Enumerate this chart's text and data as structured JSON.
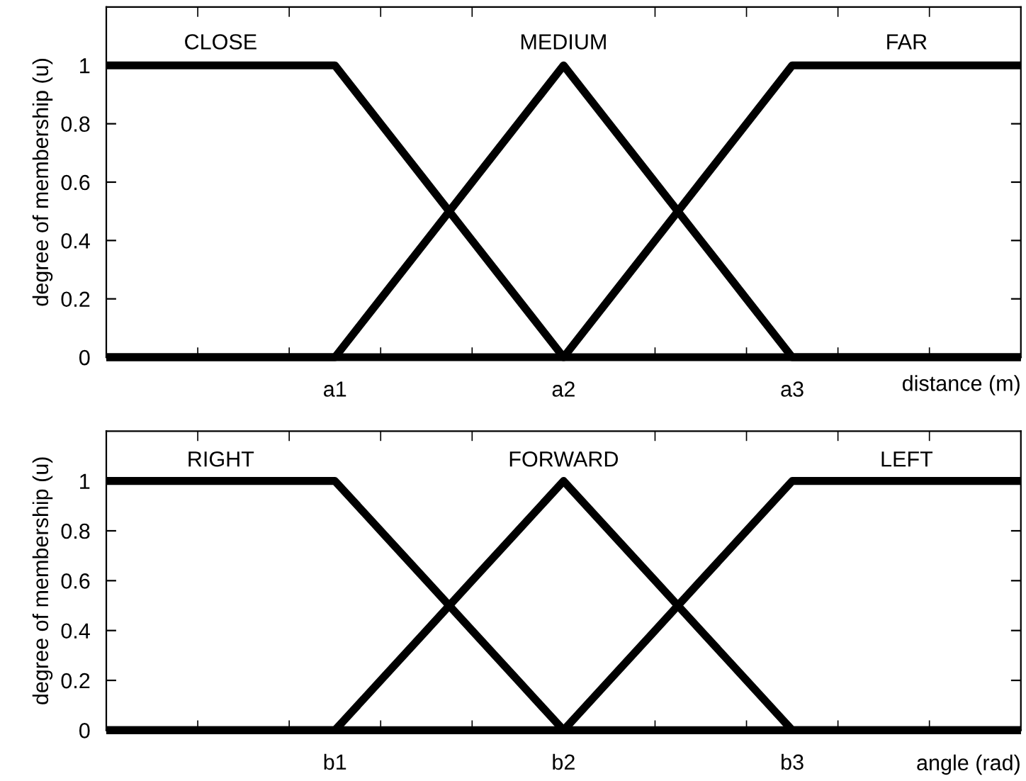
{
  "chart_data": [
    {
      "type": "line",
      "legend": "top",
      "xlabel": "distance (m)",
      "ylabel": "degree of membership (u)",
      "categories": [
        null,
        null,
        null,
        null,
        null,
        "a1",
        null,
        null,
        null,
        null,
        "a2",
        null,
        null,
        null,
        null,
        "a3",
        null,
        null,
        null,
        null,
        null
      ],
      "ylim": [
        0,
        1.2
      ],
      "yticks": [
        0,
        0.2,
        0.4,
        0.6,
        0.8,
        1
      ],
      "series": [
        {
          "name": "CLOSE",
          "color": "#000000",
          "values": [
            1,
            1,
            1,
            1,
            1,
            1,
            0.8,
            0.6,
            0.4,
            0.2,
            0,
            0,
            0,
            0,
            0,
            0,
            0,
            0,
            0,
            0,
            0
          ]
        },
        {
          "name": "MEDIUM",
          "color": "#000000",
          "values": [
            0,
            0,
            0,
            0,
            0,
            0,
            0.2,
            0.4,
            0.6,
            0.8,
            1,
            0.8,
            0.6,
            0.4,
            0.2,
            0,
            0,
            0,
            0,
            0,
            0
          ]
        },
        {
          "name": "FAR",
          "color": "#000000",
          "values": [
            0,
            0,
            0,
            0,
            0,
            0,
            0,
            0,
            0,
            0,
            0,
            0.2,
            0.4,
            0.6,
            0.8,
            1,
            1,
            1,
            1,
            1,
            1
          ]
        }
      ]
    },
    {
      "type": "line",
      "legend": "top",
      "xlabel": "angle (rad)",
      "ylabel": "degree of membership (u)",
      "categories": [
        null,
        null,
        null,
        null,
        null,
        "b1",
        null,
        null,
        null,
        null,
        "b2",
        null,
        null,
        null,
        null,
        "b3",
        null,
        null,
        null,
        null,
        null
      ],
      "ylim": [
        0,
        1.2
      ],
      "yticks": [
        0,
        0.2,
        0.4,
        0.6,
        0.8,
        1
      ],
      "series": [
        {
          "name": "RIGHT",
          "color": "#000000",
          "values": [
            1,
            1,
            1,
            1,
            1,
            1,
            0.8,
            0.6,
            0.4,
            0.2,
            0,
            0,
            0,
            0,
            0,
            0,
            0,
            0,
            0,
            0,
            0
          ]
        },
        {
          "name": "FORWARD",
          "color": "#000000",
          "values": [
            0,
            0,
            0,
            0,
            0,
            0,
            0.2,
            0.4,
            0.6,
            0.8,
            1,
            0.8,
            0.6,
            0.4,
            0.2,
            0,
            0,
            0,
            0,
            0,
            0
          ]
        },
        {
          "name": "LEFT",
          "color": "#000000",
          "values": [
            0,
            0,
            0,
            0,
            0,
            0,
            0,
            0,
            0,
            0,
            0,
            0.2,
            0.4,
            0.6,
            0.8,
            1,
            1,
            1,
            1,
            1,
            1
          ]
        }
      ]
    }
  ]
}
